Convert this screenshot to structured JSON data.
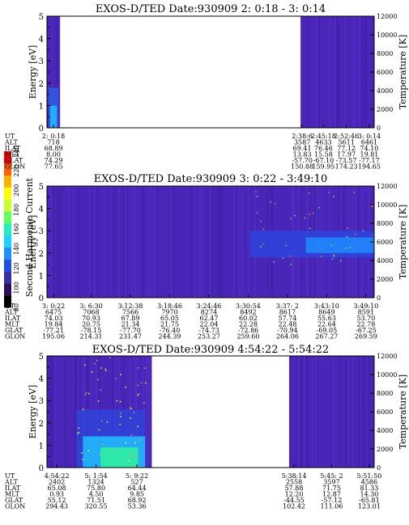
{
  "colorbar": {
    "label": "Second Harmonic Current",
    "ticks": [
      "80",
      "100",
      "120",
      "140",
      "160",
      "180",
      "200",
      "220",
      "240"
    ],
    "colors": [
      "#000000",
      "#2e0f5e",
      "#3a2ea8",
      "#2050e0",
      "#2090ff",
      "#20d0ff",
      "#20f0c0",
      "#60ff60",
      "#c8ff30",
      "#ffff00",
      "#ffb000",
      "#ff6000",
      "#ff0000"
    ]
  },
  "panels": [
    {
      "title": "EXOS-D/TED   Date:930909  2: 0:18 - 3: 0:14",
      "ylabel": "Energy [eV]",
      "y2label": "Temperature [K]",
      "yticks": [
        "0",
        "1",
        "2",
        "3",
        "4",
        "5"
      ],
      "y2ticks": [
        "0",
        "2000",
        "4000",
        "6000",
        "8000",
        "10000",
        "12000"
      ],
      "data_spans": [
        [
          0.0,
          0.04
        ],
        [
          0.775,
          1.0
        ]
      ],
      "hot_spots": [],
      "table": {
        "row_labels": [
          "UT",
          "ALT",
          "ILAT",
          "MLT",
          "GLAT",
          "GLON"
        ],
        "columns": [
          {
            "x": 0.02,
            "values": [
              "2: 0:18",
              "718",
              "68.89",
              "8.00",
              "74.29",
              "77.65"
            ]
          },
          {
            "x": 0.78,
            "values": [
              "2:38:6",
              "3587",
              "69.41",
              "13.83",
              "-57.70",
              "150.88"
            ]
          },
          {
            "x": 0.845,
            "values": [
              "2:45:18",
              "4633",
              "76.46",
              "15.58",
              "-67.10",
              "159.95"
            ]
          },
          {
            "x": 0.915,
            "values": [
              "2:52:46",
              "5611",
              "77.12",
              "17.97",
              "-73.57",
              "174.23"
            ]
          },
          {
            "x": 0.985,
            "values": [
              "3: 0:14",
              "6461",
              "74.10",
              "19.81",
              "-77.17",
              "194.65"
            ]
          }
        ]
      }
    },
    {
      "title": "EXOS-D/TED   Date:930909  3: 0:22 - 3:49:10",
      "ylabel": "Energy [eV]",
      "y2label": "Temperature [K]",
      "yticks": [
        "0",
        "1",
        "2",
        "3",
        "4",
        "5"
      ],
      "y2ticks": [
        "0",
        "2000",
        "4000",
        "6000",
        "8000",
        "10000",
        "12000"
      ],
      "data_spans": [
        [
          0.0,
          1.0
        ]
      ],
      "hot_spots": [
        {
          "x0": 0.62,
          "x1": 1.0,
          "y0": 1.8,
          "y1": 3.0
        }
      ],
      "table": {
        "row_labels": [
          "UT",
          "ALT",
          "ILAT",
          "MLT",
          "GLAT",
          "GLON"
        ],
        "columns": [
          {
            "x": 0.02,
            "values": [
              "3: 0:22",
              "6475",
              "74.03",
              "19.84",
              "-77.21",
              "195.06"
            ]
          },
          {
            "x": 0.135,
            "values": [
              "3: 6:30",
              "7068",
              "70.93",
              "20.75",
              "-78.15",
              "214.31"
            ]
          },
          {
            "x": 0.255,
            "values": [
              "3:12:38",
              "7566",
              "67.89",
              "21.34",
              "-77.70",
              "231.47"
            ]
          },
          {
            "x": 0.375,
            "values": [
              "3:18:46",
              "7970",
              "65.05",
              "21.75",
              "-76.40",
              "244.39"
            ]
          },
          {
            "x": 0.495,
            "values": [
              "3:24:46",
              "8274",
              "62.47",
              "22.04",
              "-74.73",
              "253.27"
            ]
          },
          {
            "x": 0.615,
            "values": [
              "3:30:54",
              "8492",
              "60.02",
              "22.28",
              "-72.86",
              "259.60"
            ]
          },
          {
            "x": 0.735,
            "values": [
              "3:37: 2",
              "8617",
              "57.74",
              "22.48",
              "-70.94",
              "264.06"
            ]
          },
          {
            "x": 0.855,
            "values": [
              "3:43:10",
              "8649",
              "55.63",
              "22.64",
              "-69.05",
              "267.27"
            ]
          },
          {
            "x": 0.975,
            "values": [
              "3:49:10",
              "8591",
              "53.70",
              "22.78",
              "-67.25",
              "269.59"
            ]
          }
        ]
      }
    },
    {
      "title": "EXOS-D/TED   Date:930909  4:54:22 - 5:54:22",
      "ylabel": "Energy [eV]",
      "y2label": "Temperature [K]",
      "yticks": [
        "0",
        "1",
        "2",
        "3",
        "4",
        "5"
      ],
      "y2ticks": [
        "0",
        "2000",
        "4000",
        "6000",
        "8000",
        "10000",
        "12000"
      ],
      "data_spans": [
        [
          0.0,
          0.32
        ],
        [
          0.74,
          1.0
        ]
      ],
      "hot_spots": [
        {
          "x0": 0.09,
          "x1": 0.3,
          "y0": 0.0,
          "y1": 1.4
        }
      ],
      "table": {
        "row_labels": [
          "UT",
          "ALT",
          "ILAT",
          "MLT",
          "GLAT",
          "GLON"
        ],
        "columns": [
          {
            "x": 0.03,
            "values": [
              "4:54:22",
              "2402",
              "65.08",
              "0.93",
              "55.12",
              "294.43"
            ]
          },
          {
            "x": 0.15,
            "values": [
              "5: 1:54",
              "1324",
              "75.80",
              "4.50",
              "71.51",
              "320.55"
            ]
          },
          {
            "x": 0.275,
            "values": [
              "5: 9:22",
              "527",
              "64.44",
              "9.85",
              "68.92",
              "53.36"
            ]
          },
          {
            "x": 0.755,
            "values": [
              "5:38:14",
              "2558",
              "57.88",
              "12.20",
              "-44.55",
              "102.42"
            ]
          },
          {
            "x": 0.87,
            "values": [
              "5:45: 2",
              "3597",
              "71.75",
              "12.87",
              "-57.12",
              "111.06"
            ]
          },
          {
            "x": 0.985,
            "values": [
              "5:51:50",
              "4586",
              "81.33",
              "14.30",
              "-65.81",
              "123.01"
            ]
          }
        ]
      }
    }
  ]
}
